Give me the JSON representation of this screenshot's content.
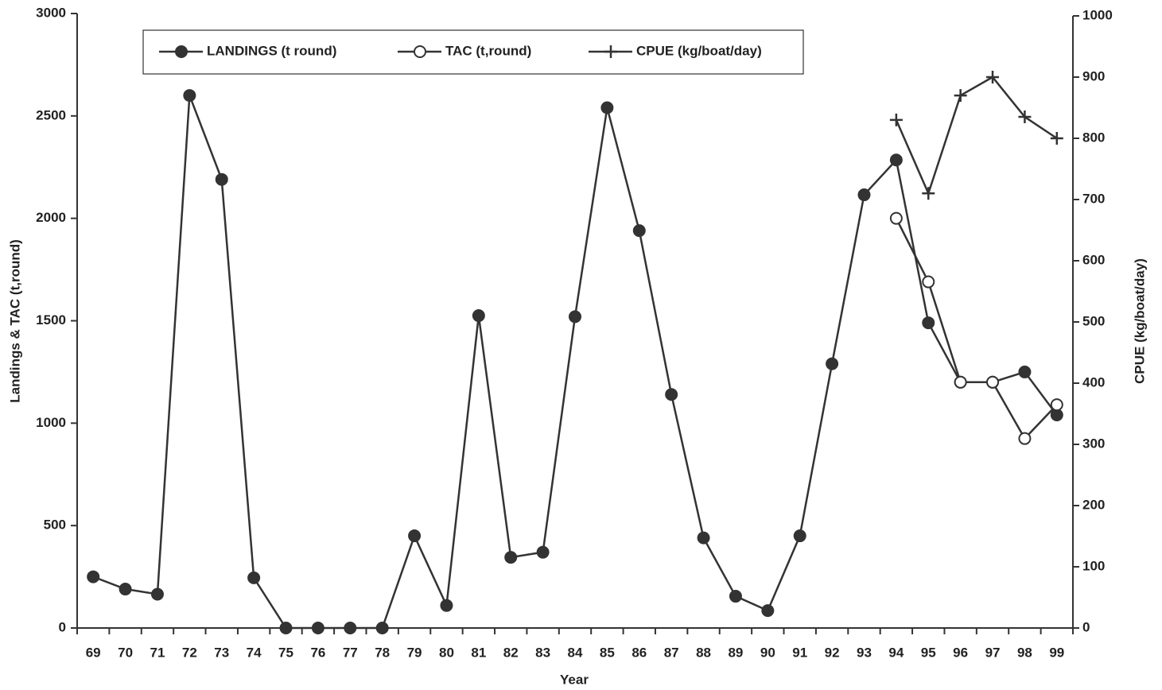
{
  "chart_data": {
    "type": "line",
    "x_label": "Year",
    "y_label": "Landings & TAC (t,round)",
    "y2_label": "CPUE (kg/boat/day)",
    "categories": [
      "69",
      "70",
      "71",
      "72",
      "73",
      "74",
      "75",
      "76",
      "77",
      "78",
      "79",
      "80",
      "81",
      "82",
      "83",
      "84",
      "85",
      "86",
      "87",
      "88",
      "89",
      "90",
      "91",
      "92",
      "93",
      "94",
      "95",
      "96",
      "97",
      "98",
      "99"
    ],
    "series": [
      {
        "name": "LANDINGS (t round)",
        "color": "#333333",
        "marker": "filled-circle",
        "values": [
          250,
          190,
          165,
          2600,
          2190,
          245,
          0,
          0,
          0,
          0,
          450,
          110,
          1525,
          345,
          370,
          1520,
          2540,
          1940,
          1140,
          440,
          155,
          85,
          450,
          1290,
          2115,
          2285,
          1490,
          1200,
          1200,
          1250,
          1040
        ]
      },
      {
        "name": "TAC (t,round)",
        "color": "#333333",
        "marker": "open-circle",
        "values": [
          null,
          null,
          null,
          null,
          null,
          null,
          null,
          null,
          null,
          null,
          null,
          null,
          null,
          null,
          null,
          null,
          null,
          null,
          null,
          null,
          null,
          null,
          null,
          null,
          null,
          2000,
          1690,
          1200,
          1200,
          925,
          1090
        ]
      },
      {
        "name": "CPUE (kg/boat/day)",
        "color": "#333333",
        "marker": "plus",
        "axis": "y2",
        "values": [
          null,
          null,
          null,
          null,
          null,
          null,
          null,
          null,
          null,
          null,
          null,
          null,
          null,
          null,
          null,
          null,
          null,
          null,
          null,
          null,
          null,
          null,
          null,
          null,
          null,
          830,
          710,
          870,
          900,
          835,
          800
        ]
      }
    ],
    "ylim": [
      0,
      3000
    ],
    "yticks": [
      0,
      500,
      1000,
      1500,
      2000,
      2500,
      3000
    ],
    "y2lim": [
      0,
      1000
    ],
    "y2ticks": [
      0,
      100,
      200,
      300,
      400,
      500,
      600,
      700,
      800,
      900,
      1000
    ],
    "legend": "top"
  }
}
